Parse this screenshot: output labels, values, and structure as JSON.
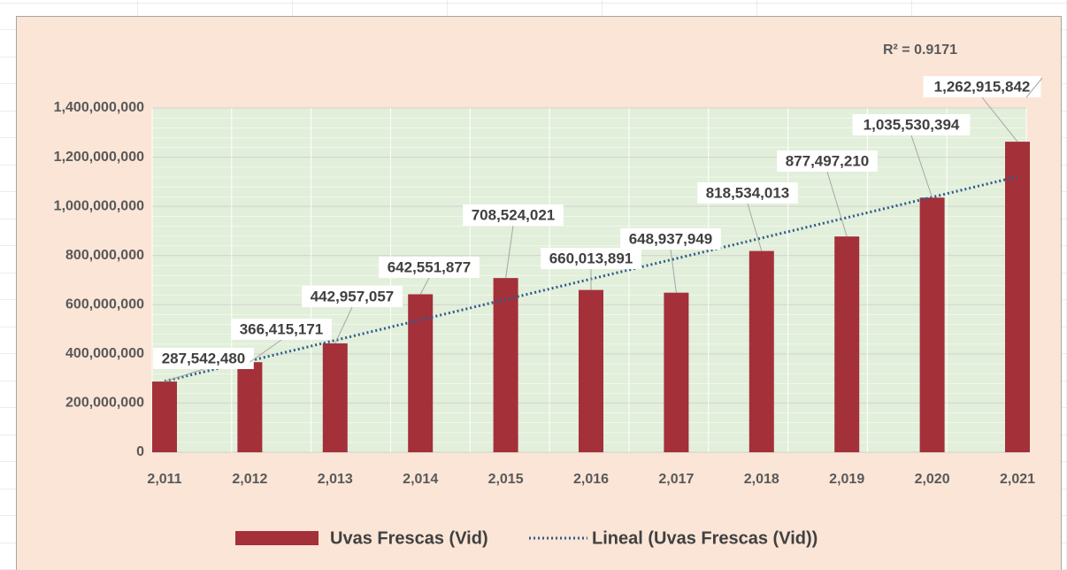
{
  "chart_data": {
    "type": "bar",
    "categories": [
      "2,011",
      "2,012",
      "2,013",
      "2,014",
      "2,015",
      "2,016",
      "2,017",
      "2,018",
      "2,019",
      "2,020",
      "2,021"
    ],
    "series": [
      {
        "name": "Uvas Frescas (Vid)",
        "color": "#a4303a",
        "values": [
          287542480,
          366415171,
          442957057,
          642551877,
          708524021,
          660013891,
          648937949,
          818534013,
          877497210,
          1035530394,
          1262915842
        ],
        "value_labels": [
          "287,542,480",
          "366,415,171",
          "442,957,057",
          "642,551,877",
          "708,524,021",
          "660,013,891",
          "648,937,949",
          "818,534,013",
          "877,497,210",
          "1,035,530,394",
          "1,262,915,842"
        ]
      }
    ],
    "trendline": {
      "name": "Lineal (Uvas Frescas (Vid))",
      "color": "#2e5c8a",
      "values": [
        288770000,
        371950000,
        455130000,
        538310000,
        621490000,
        704670000,
        787850000,
        871030000,
        954210000,
        1037390000,
        1120570000
      ],
      "annotation": "R² = 0.9171"
    },
    "ylim": [
      0,
      1400000000
    ],
    "yticks": [
      0,
      {
        "value": 200000000,
        "label": "200,000,000"
      },
      {
        "value": 400000000,
        "label": "400,000,000"
      },
      {
        "value": 600000000,
        "label": "600,000,000"
      },
      {
        "value": 800000000,
        "label": "800,000,000"
      },
      {
        "value": 1000000000,
        "label": "1,000,000,000"
      },
      {
        "value": 1200000000,
        "label": "1,200,000,000"
      },
      {
        "value": 1400000000,
        "label": "1,400,000,000"
      }
    ],
    "grid": true
  }
}
